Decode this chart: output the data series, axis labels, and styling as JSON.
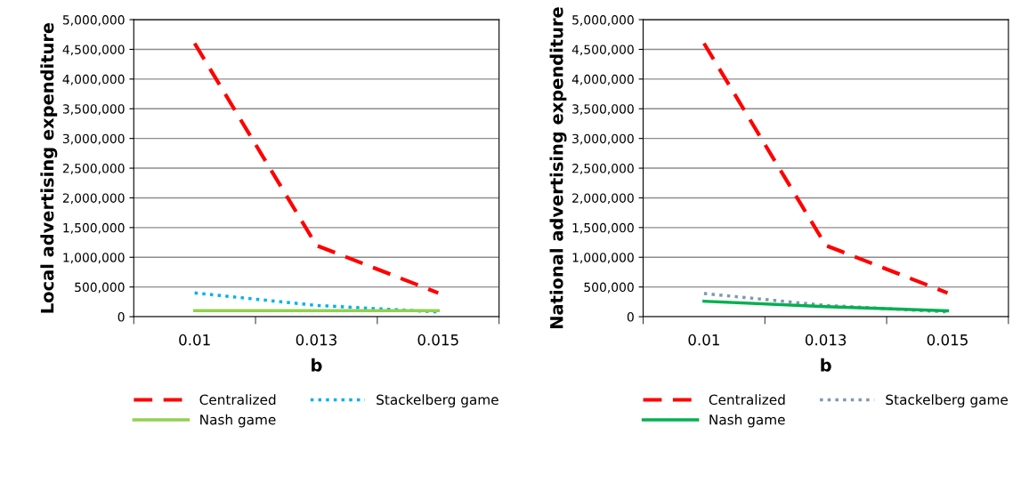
{
  "chart_data": [
    {
      "type": "line",
      "ylabel": "Local advertising expenditure",
      "xlabel": "b",
      "categories": [
        "0.01",
        "0.013",
        "0.015"
      ],
      "ylim": [
        0,
        5000000
      ],
      "yticks": [
        {
          "value": 0,
          "label": "0"
        },
        {
          "value": 500000,
          "label": "500,000"
        },
        {
          "value": 1000000,
          "label": "1,000,000"
        },
        {
          "value": 1500000,
          "label": "1,500,000"
        },
        {
          "value": 2000000,
          "label": "2,000,000"
        },
        {
          "value": 2500000,
          "label": "2,500,000"
        },
        {
          "value": 3000000,
          "label": "3,000,000"
        },
        {
          "value": 3500000,
          "label": "3,500,000"
        },
        {
          "value": 4000000,
          "label": "4,000,000"
        },
        {
          "value": 4500000,
          "label": "4,500,000"
        },
        {
          "value": 5000000,
          "label": "5,000,000"
        }
      ],
      "grid": "y",
      "legend": "bottom",
      "marker": "none",
      "series": [
        {
          "name": "Centralized",
          "color": "#ff0000",
          "line_style": "dashed",
          "values": [
            4600000,
            1200000,
            400000
          ]
        },
        {
          "name": "Stackelberg game",
          "color": "#00b0f0",
          "line_style": "dotted",
          "values": [
            400000,
            190000,
            80000
          ]
        },
        {
          "name": "Nash game",
          "color": "#92d050",
          "line_style": "solid",
          "values": [
            100000,
            100000,
            100000
          ]
        }
      ]
    },
    {
      "type": "line",
      "ylabel": "National advertising expenditure",
      "xlabel": "b",
      "categories": [
        "0.01",
        "0.013",
        "0.015"
      ],
      "ylim": [
        0,
        5000000
      ],
      "yticks": [
        {
          "value": 0,
          "label": "0"
        },
        {
          "value": 500000,
          "label": "500,000"
        },
        {
          "value": 1000000,
          "label": "1,000,000"
        },
        {
          "value": 1500000,
          "label": "1,500,000"
        },
        {
          "value": 2000000,
          "label": "2,000,000"
        },
        {
          "value": 2500000,
          "label": "2,500,000"
        },
        {
          "value": 3000000,
          "label": "3,000,000"
        },
        {
          "value": 3500000,
          "label": "3,500,000"
        },
        {
          "value": 4000000,
          "label": "4,000,000"
        },
        {
          "value": 4500000,
          "label": "4,500,000"
        },
        {
          "value": 5000000,
          "label": "5,000,000"
        }
      ],
      "grid": "y",
      "legend": "bottom",
      "marker": "none",
      "series": [
        {
          "name": "Centralized",
          "color": "#ff0000",
          "line_style": "dashed",
          "values": [
            4600000,
            1200000,
            400000
          ]
        },
        {
          "name": "Stackelberg game",
          "color": "#8496b0",
          "line_style": "dotted",
          "values": [
            390000,
            190000,
            80000
          ]
        },
        {
          "name": "Nash game",
          "color": "#00b050",
          "line_style": "solid",
          "values": [
            260000,
            170000,
            100000
          ]
        }
      ]
    }
  ]
}
